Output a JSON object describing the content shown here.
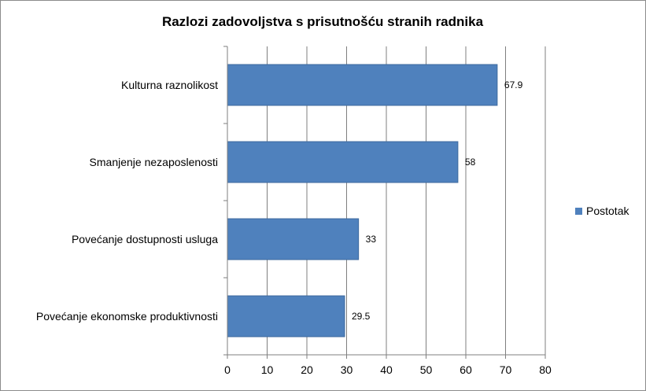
{
  "chart_data": {
    "type": "bar",
    "orientation": "horizontal",
    "title": "Razlozi zadovoljstva s prisutnošću stranih radnika",
    "xlabel": "",
    "ylabel": "",
    "categories": [
      "Kulturna raznolikost",
      "Smanjenje nezaposlenosti",
      "Povećanje dostupnosti usluga",
      "Povećanje ekonomske produktivnosti"
    ],
    "series": [
      {
        "name": "Postotak",
        "values": [
          67.9,
          58,
          33,
          29.5
        ]
      }
    ],
    "data_labels": [
      "67.9",
      "58",
      "33",
      "29.5"
    ],
    "xlim": [
      0,
      80
    ],
    "xticks": [
      "0",
      "10",
      "20",
      "30",
      "40",
      "50",
      "60",
      "70",
      "80"
    ],
    "grid": "vertical",
    "legend_position": "right",
    "colors": {
      "bar": "#4f81bd",
      "bar_edge": "#3d6a9e",
      "grid": "#7f7f7f",
      "axis": "#7f7f7f"
    }
  }
}
